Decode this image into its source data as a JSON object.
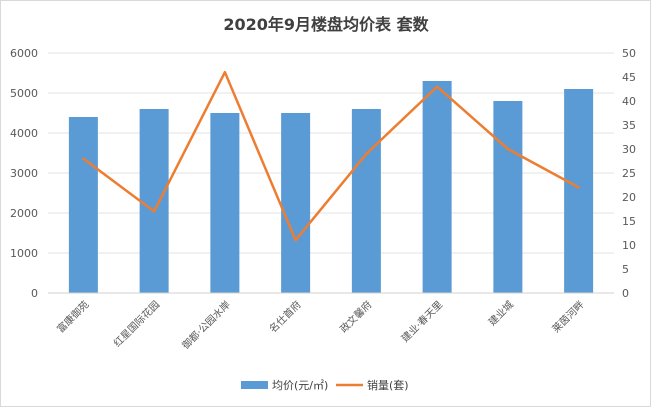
{
  "chart_data": {
    "type": "bar",
    "title": "2020年9月楼盘均价表 套数",
    "categories": [
      "富康御苑",
      "红星国际花园",
      "御都·公园水岸",
      "名仕首府",
      "政文馨府",
      "建业·春天里",
      "建业城",
      "莱茵河畔"
    ],
    "series": [
      {
        "name": "均价(元/㎡)",
        "type": "bar",
        "axis": "left",
        "color": "#5b9bd5",
        "values": [
          4400,
          4600,
          4500,
          4500,
          4600,
          5300,
          4800,
          5100
        ]
      },
      {
        "name": "销量(套)",
        "type": "line",
        "axis": "right",
        "color": "#ed7d31",
        "values": [
          28,
          17,
          46,
          11,
          29,
          43,
          30,
          22
        ]
      }
    ],
    "y_left": {
      "min": 0,
      "max": 6000,
      "ticks": [
        "0",
        "1000",
        "2000",
        "3000",
        "4000",
        "5000",
        "6000"
      ]
    },
    "y_right": {
      "min": 0,
      "max": 50,
      "ticks": [
        "0",
        "5",
        "10",
        "15",
        "20",
        "25",
        "30",
        "35",
        "40",
        "45",
        "50"
      ]
    },
    "grid": true,
    "legend": "bottom"
  }
}
